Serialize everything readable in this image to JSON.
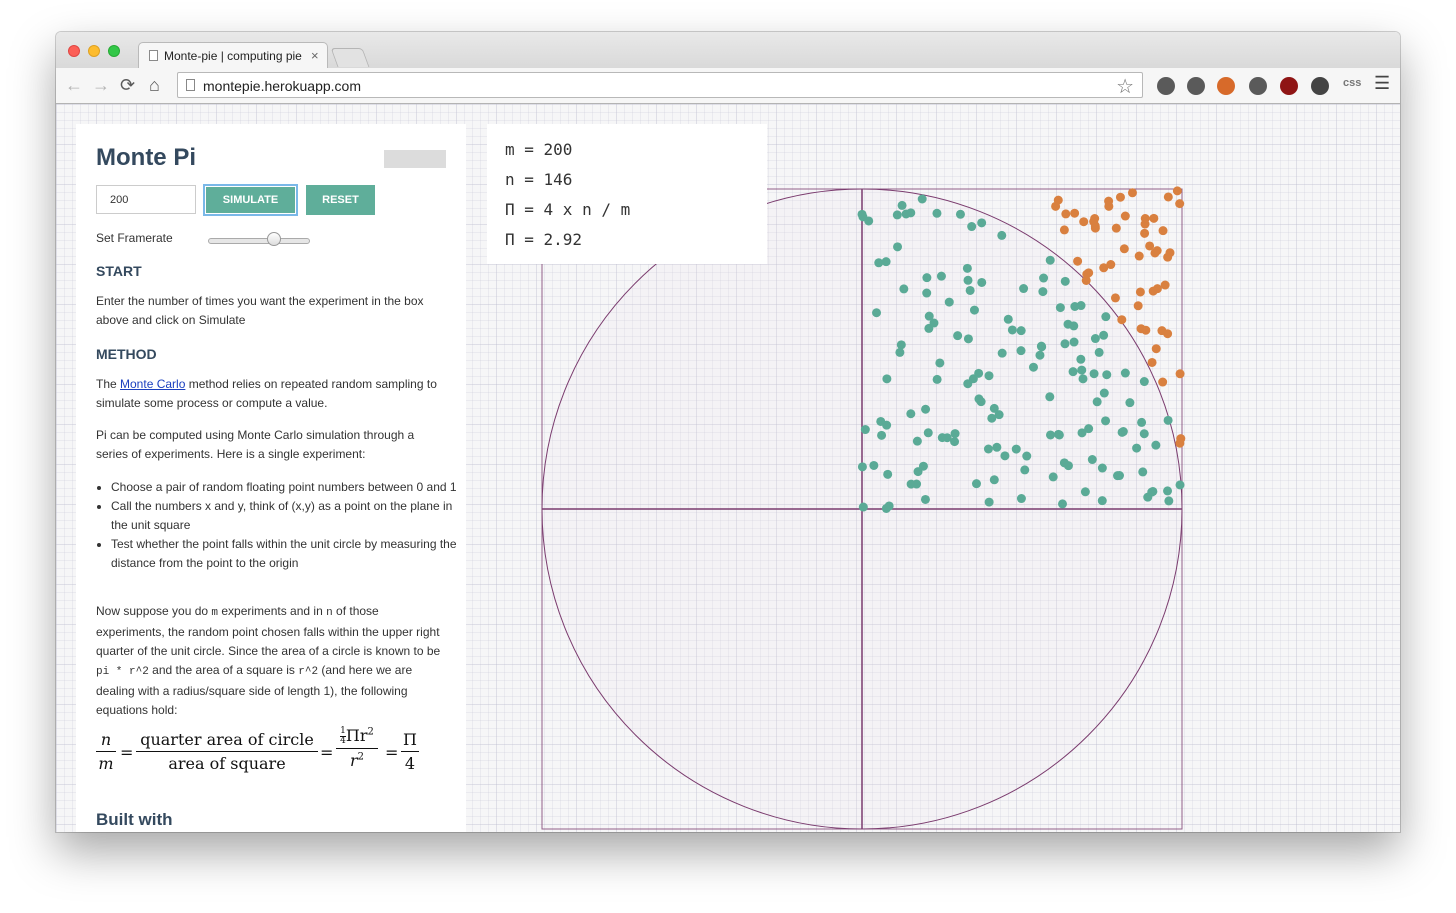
{
  "browser": {
    "tab_title": "Monte-pie | computing pie",
    "tab_close": "×",
    "url": "montepie.herokuapp.com",
    "nav": {
      "back": "←",
      "forward": "→",
      "reload": "⟳",
      "home": "⌂"
    },
    "star": "☆",
    "extensions": [
      {
        "name": "pocket-extension-icon",
        "color": "#5a5a5a"
      },
      {
        "name": "info-extension-icon",
        "color": "#5a5a5a"
      },
      {
        "name": "cookie-extension-icon",
        "color": "#d76a2a"
      },
      {
        "name": "cloud-extension-icon",
        "color": "#5a5a5a"
      },
      {
        "name": "ublock-extension-icon",
        "color": "#8f1515"
      },
      {
        "name": "id-extension-icon",
        "color": "#444444"
      },
      {
        "name": "css-extension-icon",
        "color": "#777777"
      }
    ],
    "css_label": "css",
    "menu_icon": "☰"
  },
  "sidebar": {
    "title": "Monte Pi",
    "input_value": "200",
    "simulate_label": "SIMULATE",
    "reset_label": "RESET",
    "framerate_label": "Set Framerate",
    "framerate_level": 0.66,
    "start_head": "START",
    "start_text": "Enter the number of times you want the experiment in the box above and click on Simulate",
    "method_head": "METHOD",
    "method_p1_before": "The ",
    "method_p1_link": "Monte Carlo",
    "method_p1_after": " method relies on repeated random sampling to simulate some process or compute a value.",
    "method_p2": "Pi can be computed using Monte Carlo simulation through a series of experiments. Here is a single experiment:",
    "bullets": [
      "Choose a pair of random floating point numbers between 0 and 1",
      "Call the numbers x and y, think of (x,y) as a point on the plane in the unit square",
      "Test whether the point falls within the unit circle by measuring the distance from the point to the origin"
    ],
    "p3": {
      "t1": "Now suppose you do ",
      "c1": "m",
      "t2": " experiments and in ",
      "c2": "n",
      "t3": " of those experiments, the random point chosen falls within the upper right quarter of the unit circle. Since the area of a circle is known to be ",
      "c3": "pi * r^2",
      "t4": " and the area of a square is ",
      "c4": "r^2",
      "t5": " (and here we are dealing with a radius/square side of length 1), the following equations hold:"
    },
    "equation": {
      "n": "n",
      "m": "m",
      "eq": "=",
      "quarter_area": "quarter area of circle",
      "square_area": "area of square",
      "quarter": "1",
      "four": "4",
      "pi_r2": "Πr",
      "exp": "2",
      "r2": "r",
      "pi": "Π"
    },
    "built_with": "Built with"
  },
  "stats": {
    "m_line": "m = 200",
    "n_line": "n = 146",
    "formula_line": "Π = 4 x n / m",
    "pi_line": "Π = 2.92"
  },
  "plot": {
    "inside_color": "#5aaa96",
    "outside_color": "#d9803f",
    "line_color": "#7a3b6e",
    "total_points": 200,
    "points_inside": 146
  }
}
